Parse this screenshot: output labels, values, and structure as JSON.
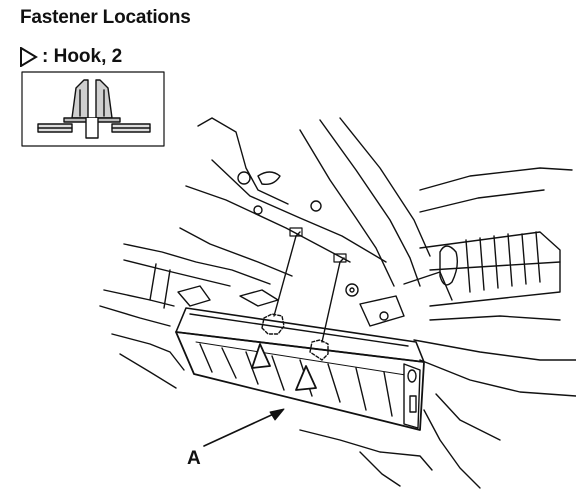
{
  "header": {
    "title": "Fastener Locations"
  },
  "legend": {
    "symbol_icon": "hollow-triangle-icon",
    "label": ": Hook, 2"
  },
  "callouts": {
    "a": "A"
  }
}
